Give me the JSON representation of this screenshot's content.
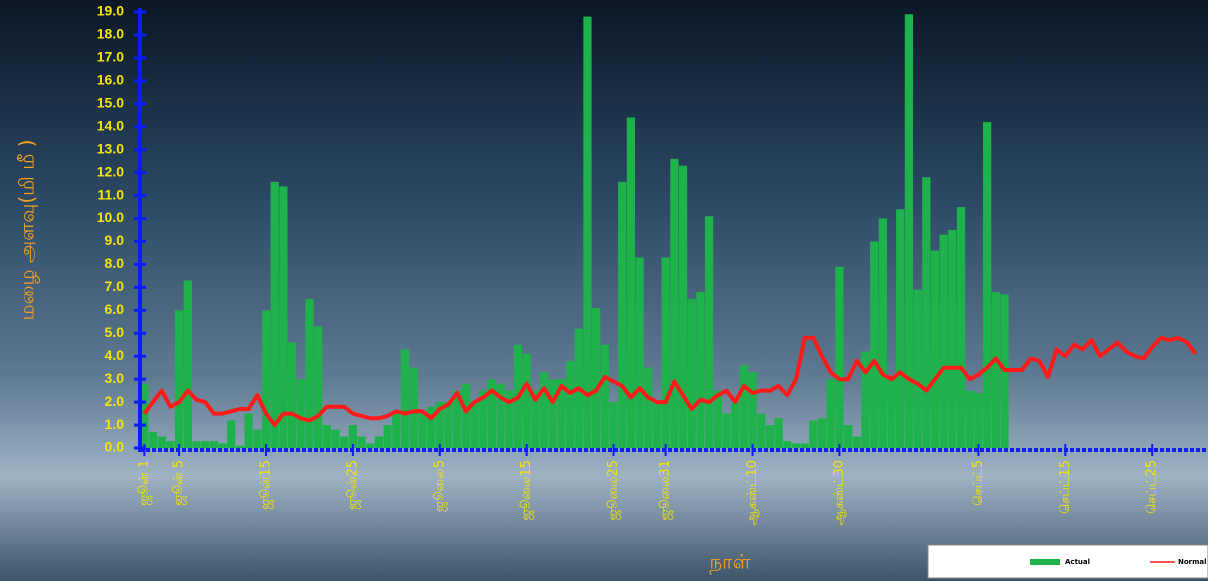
{
  "chart_data": {
    "type": "bar-line",
    "y_label": "மழை அளவு(மி மீ )",
    "x_label": "நாள்",
    "x": [
      1,
      2,
      3,
      4,
      5,
      6,
      7,
      8,
      9,
      10,
      11,
      12,
      13,
      14,
      15,
      16,
      17,
      18,
      19,
      20,
      21,
      22,
      23,
      24,
      25,
      26,
      27,
      28,
      29,
      30,
      31,
      32,
      33,
      34,
      35,
      36,
      37,
      38,
      39,
      40,
      41,
      42,
      43,
      44,
      45,
      46,
      47,
      48,
      49,
      50,
      51,
      52,
      53,
      54,
      55,
      56,
      57,
      58,
      59,
      60,
      61,
      62,
      63,
      64,
      65,
      66,
      67,
      68,
      69,
      70,
      71,
      72,
      73,
      74,
      75,
      76,
      77,
      78,
      79,
      80,
      81,
      82,
      83,
      84,
      85,
      86,
      87,
      88,
      89,
      90,
      91,
      92,
      93,
      94,
      95,
      96,
      97,
      98,
      99,
      100,
      101,
      102,
      103,
      104,
      105,
      106,
      107,
      108,
      109,
      110,
      111,
      112,
      113,
      114,
      115,
      116,
      117,
      118,
      119,
      120,
      121,
      122
    ],
    "xlim": [
      0.5,
      122.5
    ],
    "xticks": [
      {
        "value": 1,
        "label": "ஜூன் 1"
      },
      {
        "value": 5,
        "label": "ஜூன் 5"
      },
      {
        "value": 15,
        "label": "ஜூன்15"
      },
      {
        "value": 25,
        "label": "ஜூன்25"
      },
      {
        "value": 35,
        "label": "ஜூலை5"
      },
      {
        "value": 45,
        "label": "ஜூலை15"
      },
      {
        "value": 55,
        "label": "ஜூலை25"
      },
      {
        "value": 61,
        "label": "ஜூலை31"
      },
      {
        "value": 71,
        "label": "ஆகஸ்ட்10"
      },
      {
        "value": 81,
        "label": "ஆகஸ்ட்30"
      },
      {
        "value": 97,
        "label": "செப்ட்5"
      },
      {
        "value": 107,
        "label": "செப்ட்15"
      },
      {
        "value": 117,
        "label": "செப்ட்25"
      }
    ],
    "ylim": [
      0,
      19
    ],
    "yticks": [
      {
        "value": 0,
        "label": "0.0"
      },
      {
        "value": 1,
        "label": "1.0"
      },
      {
        "value": 2,
        "label": "2.0"
      },
      {
        "value": 3,
        "label": "3.0"
      },
      {
        "value": 4,
        "label": "4.0"
      },
      {
        "value": 5,
        "label": "5.0"
      },
      {
        "value": 6,
        "label": "6.0"
      },
      {
        "value": 7,
        "label": "7.0"
      },
      {
        "value": 8,
        "label": "8.0"
      },
      {
        "value": 9,
        "label": "9.0"
      },
      {
        "value": 10,
        "label": "10.0"
      },
      {
        "value": 11,
        "label": "11.0"
      },
      {
        "value": 12,
        "label": "12.0"
      },
      {
        "value": 13,
        "label": "13.0"
      },
      {
        "value": 14,
        "label": "14.0"
      },
      {
        "value": 15,
        "label": "15.0"
      },
      {
        "value": 16,
        "label": "16.0"
      },
      {
        "value": 17,
        "label": "17.0"
      },
      {
        "value": 18,
        "label": "18.0"
      },
      {
        "value": 19,
        "label": "19.0"
      }
    ],
    "series": [
      {
        "name": "Actual",
        "color": "#1db34a",
        "values": [
          2.8,
          0.7,
          0.5,
          0.3,
          6.0,
          7.3,
          0.3,
          0.3,
          0.3,
          0.2,
          1.2,
          0.1,
          1.5,
          0.8,
          6.0,
          11.6,
          11.4,
          4.6,
          3.0,
          6.5,
          5.3,
          1.0,
          0.8,
          0.5,
          1.0,
          0.5,
          0.2,
          0.5,
          1.0,
          1.5,
          4.3,
          3.5,
          1.5,
          1.8,
          2.0,
          2.0,
          2.5,
          2.8,
          2.0,
          2.5,
          3.0,
          2.8,
          2.5,
          4.5,
          4.1,
          2.5,
          3.3,
          3.0,
          3.0,
          3.8,
          5.2,
          18.8,
          6.1,
          4.5,
          2.0,
          11.6,
          14.4,
          8.3,
          3.5,
          2.0,
          8.3,
          12.6,
          12.3,
          6.5,
          6.8,
          10.1,
          2.5,
          1.5,
          2.0,
          3.6,
          3.3,
          1.5,
          1.0,
          1.3,
          0.3,
          0.2,
          0.2,
          1.2,
          1.3,
          3.0,
          7.9,
          1.0,
          0.5,
          4.2,
          9.0,
          10.0,
          3.0,
          10.4,
          18.9,
          6.9,
          11.8,
          8.6,
          9.3,
          9.5,
          10.5,
          2.5,
          2.4,
          14.2,
          6.8,
          6.7,
          null,
          null,
          null,
          null,
          null,
          null,
          null,
          null,
          null,
          null,
          null,
          null,
          null,
          null,
          null,
          null,
          null,
          null,
          null,
          null,
          null,
          null
        ]
      },
      {
        "name": "Normal",
        "color": "#ff1a1a",
        "values": [
          1.5,
          2.0,
          2.5,
          1.8,
          2.0,
          2.5,
          2.1,
          2.0,
          1.5,
          1.5,
          1.6,
          1.7,
          1.7,
          2.3,
          1.5,
          1.0,
          1.5,
          1.5,
          1.3,
          1.2,
          1.4,
          1.8,
          1.8,
          1.8,
          1.5,
          1.4,
          1.3,
          1.3,
          1.4,
          1.6,
          1.5,
          1.6,
          1.6,
          1.3,
          1.7,
          1.9,
          2.4,
          1.6,
          2.0,
          2.2,
          2.5,
          2.2,
          2.0,
          2.2,
          2.8,
          2.1,
          2.6,
          2.0,
          2.7,
          2.4,
          2.6,
          2.3,
          2.5,
          3.1,
          2.9,
          2.7,
          2.2,
          2.6,
          2.2,
          2.0,
          2.0,
          2.9,
          2.3,
          1.7,
          2.1,
          2.0,
          2.3,
          2.5,
          2.0,
          2.7,
          2.4,
          2.5,
          2.5,
          2.7,
          2.3,
          3.0,
          4.8,
          4.8,
          4.0,
          3.3,
          3.0,
          3.0,
          3.8,
          3.3,
          3.8,
          3.2,
          3.0,
          3.3,
          3.0,
          2.8,
          2.5,
          3.0,
          3.5,
          3.5,
          3.5,
          3.0,
          3.2,
          3.5,
          3.9,
          3.4,
          3.4,
          3.4,
          3.9,
          3.8,
          3.1,
          4.3,
          4.0,
          4.5,
          4.3,
          4.7,
          4.0,
          4.3,
          4.6,
          4.2,
          4.0,
          3.9,
          4.4,
          4.8,
          4.7,
          4.8,
          4.6,
          4.1
        ]
      }
    ]
  }
}
